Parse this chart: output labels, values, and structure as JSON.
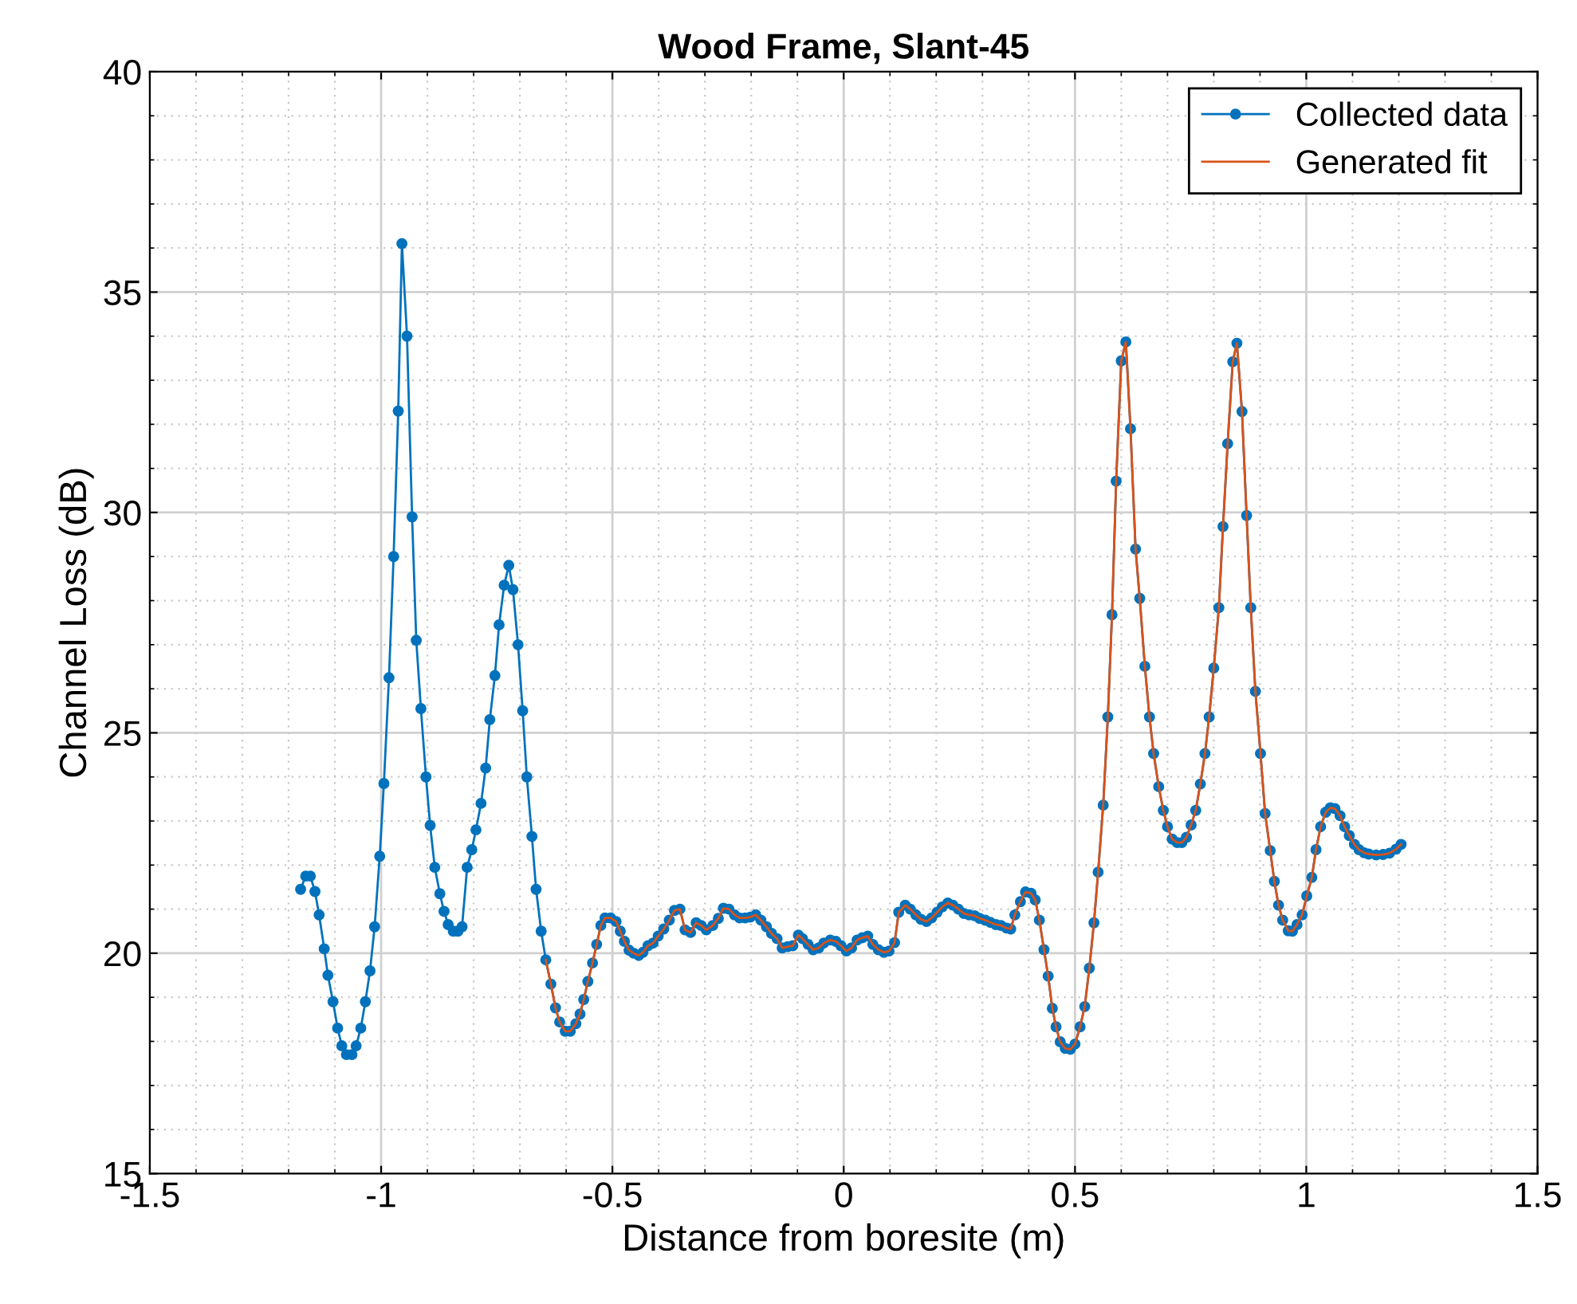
{
  "chart_data": {
    "type": "line",
    "title": "Wood Frame, Slant-45",
    "xlabel": "Distance from boresite (m)",
    "ylabel": "Channel Loss (dB)",
    "xlim": [
      -1.5,
      1.5
    ],
    "xticks": [
      -1.5,
      -1,
      -0.5,
      0,
      0.5,
      1,
      1.5
    ],
    "ylim": [
      15,
      40
    ],
    "yticks": [
      15,
      20,
      25,
      30,
      35,
      40
    ],
    "grid": true,
    "legend": "top right",
    "series": [
      {
        "name": "Collected data",
        "color": "#0072bd",
        "marker": "circle",
        "x": [
          -1.174,
          -1.163,
          -1.153,
          -1.143,
          -1.134,
          -1.123,
          -1.115,
          -1.104,
          -1.094,
          -1.085,
          -1.075,
          -1.063,
          -1.054,
          -1.044,
          -1.034,
          -1.024,
          -1.014,
          -1.003,
          -0.994,
          -0.983,
          -0.973,
          -0.963,
          -0.955,
          -0.944,
          -0.933,
          -0.924,
          -0.914,
          -0.903,
          -0.894,
          -0.884,
          -0.873,
          -0.864,
          -0.855,
          -0.844,
          -0.834,
          -0.825,
          -0.814,
          -0.804,
          -0.795,
          -0.784,
          -0.774,
          -0.765,
          -0.754,
          -0.745,
          -0.734,
          -0.724,
          -0.715,
          -0.704,
          -0.694,
          -0.685,
          -0.674,
          -0.665,
          -0.654,
          -0.644,
          -0.633,
          -0.623,
          -0.614,
          -0.602,
          -0.591,
          -0.579,
          -0.57,
          -0.562,
          -0.553,
          -0.543,
          -0.534,
          -0.525,
          -0.516,
          -0.504,
          -0.492,
          -0.483,
          -0.474,
          -0.464,
          -0.454,
          -0.443,
          -0.434,
          -0.423,
          -0.412,
          -0.401,
          -0.389,
          -0.377,
          -0.366,
          -0.354,
          -0.343,
          -0.331,
          -0.319,
          -0.308,
          -0.297,
          -0.283,
          -0.271,
          -0.26,
          -0.248,
          -0.236,
          -0.225,
          -0.213,
          -0.202,
          -0.19,
          -0.179,
          -0.167,
          -0.156,
          -0.144,
          -0.133,
          -0.121,
          -0.11,
          -0.098,
          -0.089,
          -0.077,
          -0.066,
          -0.054,
          -0.043,
          -0.029,
          -0.017,
          -0.006,
          0.006,
          0.017,
          0.029,
          0.04,
          0.052,
          0.063,
          0.075,
          0.087,
          0.098,
          0.11,
          0.119,
          0.133,
          0.144,
          0.156,
          0.167,
          0.179,
          0.19,
          0.202,
          0.213,
          0.225,
          0.236,
          0.248,
          0.26,
          0.271,
          0.283,
          0.294,
          0.306,
          0.317,
          0.329,
          0.34,
          0.352,
          0.361,
          0.37,
          0.382,
          0.393,
          0.405,
          0.414,
          0.423,
          0.433,
          0.442,
          0.451,
          0.459,
          0.468,
          0.479,
          0.49,
          0.5,
          0.511,
          0.521,
          0.531,
          0.541,
          0.55,
          0.561,
          0.571,
          0.58,
          0.589,
          0.6,
          0.61,
          0.62,
          0.631,
          0.64,
          0.651,
          0.661,
          0.67,
          0.681,
          0.691,
          0.7,
          0.71,
          0.721,
          0.731,
          0.741,
          0.751,
          0.761,
          0.771,
          0.781,
          0.79,
          0.8,
          0.811,
          0.82,
          0.83,
          0.841,
          0.85,
          0.861,
          0.871,
          0.88,
          0.89,
          0.901,
          0.911,
          0.922,
          0.931,
          0.94,
          0.949,
          0.961,
          0.97,
          0.98,
          0.991,
          1.001,
          1.012,
          1.021,
          1.031,
          1.042,
          1.052,
          1.062,
          1.073,
          1.083,
          1.093,
          1.104,
          1.114,
          1.125,
          1.135,
          1.151,
          1.166,
          1.18,
          1.194,
          1.205
        ],
        "values": [
          21.45,
          21.75,
          21.75,
          21.4,
          20.87,
          20.1,
          19.5,
          18.9,
          18.3,
          17.9,
          17.7,
          17.7,
          17.9,
          18.3,
          18.9,
          19.6,
          20.6,
          22.2,
          23.85,
          26.25,
          29.0,
          32.3,
          36.1,
          34.0,
          29.9,
          27.1,
          25.55,
          24.0,
          22.9,
          21.95,
          21.35,
          20.95,
          20.65,
          20.5,
          20.5,
          20.6,
          21.95,
          22.35,
          22.8,
          23.4,
          24.2,
          25.3,
          26.3,
          27.45,
          28.35,
          28.8,
          28.25,
          27.0,
          25.5,
          24.0,
          22.65,
          21.45,
          20.5,
          19.85,
          19.3,
          18.76,
          18.44,
          18.23,
          18.23,
          18.4,
          18.62,
          18.95,
          19.36,
          19.78,
          20.2,
          20.63,
          20.8,
          20.8,
          20.72,
          20.5,
          20.27,
          20.07,
          20.0,
          19.95,
          20.02,
          20.17,
          20.23,
          20.39,
          20.55,
          20.75,
          20.97,
          21.0,
          20.53,
          20.47,
          20.69,
          20.63,
          20.53,
          20.63,
          20.79,
          21.02,
          21.0,
          20.87,
          20.8,
          20.8,
          20.82,
          20.87,
          20.75,
          20.6,
          20.45,
          20.33,
          20.12,
          20.15,
          20.17,
          20.41,
          20.33,
          20.2,
          20.08,
          20.12,
          20.23,
          20.3,
          20.27,
          20.17,
          20.05,
          20.12,
          20.3,
          20.35,
          20.39,
          20.2,
          20.08,
          20.02,
          20.05,
          20.24,
          20.93,
          21.09,
          21.0,
          20.87,
          20.77,
          20.72,
          20.8,
          20.93,
          21.05,
          21.14,
          21.09,
          21.0,
          20.9,
          20.87,
          20.85,
          20.79,
          20.75,
          20.7,
          20.65,
          20.63,
          20.57,
          20.55,
          20.87,
          21.17,
          21.39,
          21.36,
          21.21,
          20.75,
          20.08,
          19.48,
          18.75,
          18.33,
          17.99,
          17.84,
          17.82,
          17.94,
          18.33,
          18.79,
          19.66,
          20.69,
          21.84,
          23.36,
          25.36,
          27.68,
          30.71,
          33.44,
          33.87,
          31.9,
          29.17,
          28.05,
          26.51,
          25.36,
          24.53,
          23.78,
          23.24,
          22.87,
          22.59,
          22.51,
          22.51,
          22.63,
          22.91,
          23.24,
          23.84,
          24.53,
          25.36,
          26.47,
          27.84,
          29.68,
          31.56,
          33.42,
          33.84,
          32.29,
          29.93,
          27.84,
          25.94,
          24.53,
          23.17,
          22.33,
          21.63,
          21.09,
          20.75,
          20.51,
          20.5,
          20.65,
          20.87,
          21.3,
          21.72,
          22.35,
          22.87,
          23.2,
          23.3,
          23.28,
          23.12,
          22.87,
          22.67,
          22.47,
          22.35,
          22.28,
          22.25,
          22.23,
          22.24,
          22.27,
          22.36,
          22.47
        ]
      },
      {
        "name": "Generated fit",
        "color": "#d95319",
        "marker": "none",
        "x": [
          -0.644,
          -0.633,
          -0.623,
          -0.614,
          -0.602,
          -0.591,
          -0.579,
          -0.57,
          -0.562,
          -0.553,
          -0.543,
          -0.534,
          -0.525,
          -0.516,
          -0.504,
          -0.492,
          -0.483,
          -0.474,
          -0.464,
          -0.454,
          -0.443,
          -0.434,
          -0.423,
          -0.412,
          -0.401,
          -0.389,
          -0.377,
          -0.366,
          -0.354,
          -0.343,
          -0.331,
          -0.319,
          -0.308,
          -0.297,
          -0.283,
          -0.271,
          -0.26,
          -0.248,
          -0.236,
          -0.225,
          -0.213,
          -0.202,
          -0.19,
          -0.179,
          -0.167,
          -0.156,
          -0.144,
          -0.133,
          -0.121,
          -0.11,
          -0.098,
          -0.089,
          -0.077,
          -0.066,
          -0.054,
          -0.043,
          -0.029,
          -0.017,
          -0.006,
          0.006,
          0.017,
          0.029,
          0.04,
          0.052,
          0.063,
          0.075,
          0.087,
          0.098,
          0.11,
          0.119,
          0.133,
          0.144,
          0.156,
          0.167,
          0.179,
          0.19,
          0.202,
          0.213,
          0.225,
          0.236,
          0.248,
          0.26,
          0.271,
          0.283,
          0.294,
          0.306,
          0.317,
          0.329,
          0.34,
          0.352,
          0.361,
          0.37,
          0.382,
          0.393,
          0.405,
          0.414,
          0.423,
          0.433,
          0.442,
          0.451,
          0.459,
          0.468,
          0.479,
          0.49,
          0.5,
          0.511,
          0.521,
          0.531,
          0.541,
          0.55,
          0.561,
          0.571,
          0.58,
          0.589,
          0.6,
          0.61,
          0.62,
          0.631,
          0.64,
          0.651,
          0.661,
          0.67,
          0.681,
          0.691,
          0.7,
          0.71,
          0.721,
          0.731,
          0.741,
          0.751,
          0.761,
          0.771,
          0.781,
          0.79,
          0.8,
          0.811,
          0.82,
          0.83,
          0.841,
          0.85,
          0.861,
          0.871,
          0.88,
          0.89,
          0.901,
          0.911,
          0.922,
          0.931,
          0.94,
          0.949,
          0.961,
          0.97,
          0.98,
          0.991,
          1.001,
          1.012,
          1.021,
          1.031,
          1.042,
          1.052,
          1.062,
          1.073,
          1.083,
          1.093,
          1.104,
          1.114,
          1.125,
          1.135,
          1.151,
          1.166,
          1.18,
          1.194,
          1.205
        ],
        "values": [
          19.85,
          19.3,
          18.76,
          18.44,
          18.23,
          18.23,
          18.4,
          18.62,
          18.95,
          19.36,
          19.78,
          20.2,
          20.63,
          20.8,
          20.8,
          20.72,
          20.5,
          20.27,
          20.07,
          20.0,
          19.95,
          20.02,
          20.17,
          20.23,
          20.39,
          20.55,
          20.75,
          20.97,
          21.0,
          20.53,
          20.47,
          20.69,
          20.63,
          20.53,
          20.63,
          20.79,
          21.02,
          21.0,
          20.87,
          20.8,
          20.8,
          20.82,
          20.87,
          20.75,
          20.6,
          20.45,
          20.33,
          20.12,
          20.15,
          20.17,
          20.41,
          20.33,
          20.2,
          20.08,
          20.12,
          20.23,
          20.3,
          20.27,
          20.17,
          20.05,
          20.12,
          20.3,
          20.35,
          20.39,
          20.2,
          20.08,
          20.02,
          20.05,
          20.24,
          20.93,
          21.09,
          21.0,
          20.87,
          20.77,
          20.72,
          20.8,
          20.93,
          21.05,
          21.14,
          21.09,
          21.0,
          20.9,
          20.87,
          20.85,
          20.79,
          20.75,
          20.7,
          20.65,
          20.63,
          20.57,
          20.55,
          20.87,
          21.17,
          21.39,
          21.36,
          21.21,
          20.75,
          20.08,
          19.48,
          18.75,
          18.33,
          17.99,
          17.84,
          17.82,
          17.94,
          18.33,
          18.79,
          19.66,
          20.69,
          21.84,
          23.36,
          25.36,
          27.68,
          30.71,
          33.44,
          33.87,
          31.9,
          29.17,
          28.05,
          26.51,
          25.36,
          24.53,
          23.78,
          23.24,
          22.87,
          22.59,
          22.51,
          22.51,
          22.63,
          22.91,
          23.24,
          23.84,
          24.53,
          25.36,
          26.47,
          27.84,
          29.68,
          31.56,
          33.42,
          33.84,
          32.29,
          29.93,
          27.84,
          25.94,
          24.53,
          23.17,
          22.33,
          21.63,
          21.09,
          20.75,
          20.51,
          20.5,
          20.65,
          20.87,
          21.3,
          21.72,
          22.35,
          22.87,
          23.2,
          23.3,
          23.28,
          23.12,
          22.87,
          22.67,
          22.47,
          22.35,
          22.28,
          22.25,
          22.23,
          22.24,
          22.27,
          22.36,
          22.47
        ]
      }
    ]
  }
}
